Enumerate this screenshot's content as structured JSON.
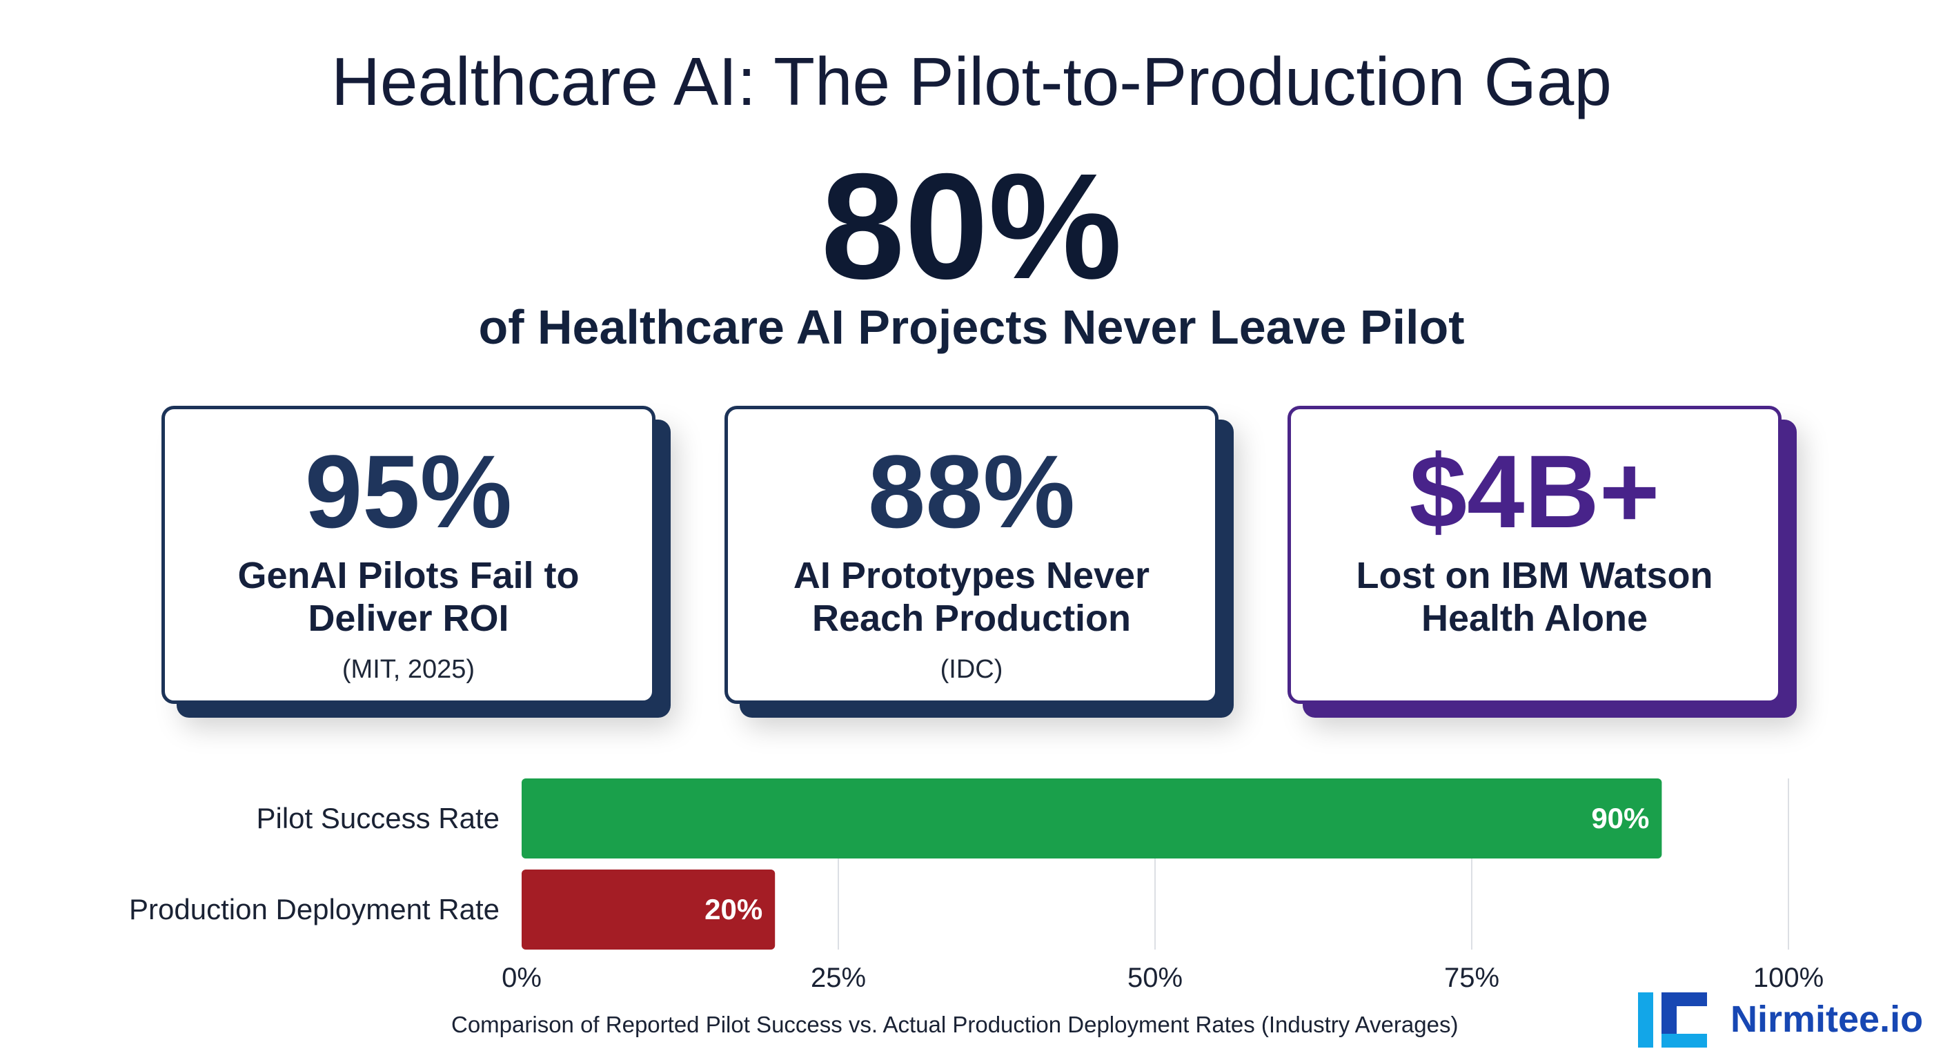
{
  "header": {
    "title": "Healthcare AI: The Pilot-to-Production Gap",
    "hero_value": "80%",
    "hero_caption": "of Healthcare AI Projects Never Leave Pilot"
  },
  "cards": [
    {
      "value": "95%",
      "line1": "GenAI Pilots Fail to",
      "line2": "Deliver ROI",
      "source": "(MIT, 2025)",
      "color": "#1c3358"
    },
    {
      "value": "88%",
      "line1": "AI Prototypes Never",
      "line2": "Reach Production",
      "source": "(IDC)",
      "color": "#1c3358"
    },
    {
      "value": "$4B+",
      "line1": "Lost on IBM Watson",
      "line2": "Health Alone",
      "source": "",
      "color": "#4a2588"
    }
  ],
  "chart_data": {
    "type": "bar",
    "orientation": "horizontal",
    "categories": [
      "Pilot Success Rate",
      "Production Deployment Rate"
    ],
    "values": [
      90,
      20
    ],
    "value_labels": [
      "90%",
      "20%"
    ],
    "colors": [
      "#1aa04b",
      "#a41d25"
    ],
    "xlim": [
      0,
      100
    ],
    "xticks": [
      0,
      25,
      50,
      75,
      100
    ],
    "xtick_labels": [
      "0%",
      "25%",
      "50%",
      "75%",
      "100%"
    ],
    "grid": "vertical",
    "caption": "Comparison of Reported Pilot Success vs. Actual Production Deployment Rates (Industry Averages)"
  },
  "brand": {
    "name": "Nirmitee.io",
    "mark_icon": "nirmitee-logo-icon",
    "mark_colors": [
      "#12a6e8",
      "#1747b3"
    ]
  }
}
